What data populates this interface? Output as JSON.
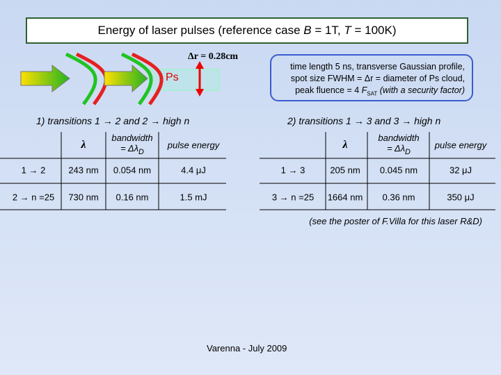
{
  "title": {
    "parts": [
      "Energy of laser pulses (reference case ",
      "B",
      " = 1T, ",
      "T",
      " = 100K)"
    ]
  },
  "diagram": {
    "particle_label": "Ps",
    "size_label": "Δr = 0.28cm"
  },
  "info_box": {
    "lines": [
      "time length 5 ns, transverse Gaussian profile,",
      "spot size FWHM = Δr = diameter of Ps cloud,"
    ],
    "last_line_parts": [
      "peak fluence = 4 ",
      "F",
      "SAT",
      "  (with a security factor)"
    ]
  },
  "sections": [
    {
      "heading": "1)  transitions 1 → 2 and 2 → high n",
      "table": {
        "header": {
          "wavelength": "λ",
          "bandwidth": "bandwidth",
          "bandwidth_symbol": "= Δλ",
          "bandwidth_subscript": "D",
          "energy": "pulse energy"
        },
        "rows": [
          [
            "1 → 2",
            "243 nm",
            "0.054 nm",
            "4.4 μJ"
          ],
          [
            "2 → n =25",
            "730 nm",
            "0.16 nm",
            "1.5 mJ"
          ]
        ]
      }
    },
    {
      "heading": "2)  transitions 1 → 3 and 3 → high n",
      "table": {
        "header": {
          "wavelength": "λ",
          "bandwidth": "bandwidth",
          "bandwidth_symbol": "= Δλ",
          "bandwidth_subscript": "D",
          "energy": "pulse energy"
        },
        "rows": [
          [
            "1 → 3",
            "205 nm",
            "0.045 nm",
            "32 μJ"
          ],
          [
            "3 → n =25",
            "1664 nm",
            "0.36 nm",
            "350 μJ"
          ]
        ]
      }
    }
  ],
  "note": "(see the poster of F.Villa for this laser R&D)",
  "footer": "Varenna - July 2009"
}
